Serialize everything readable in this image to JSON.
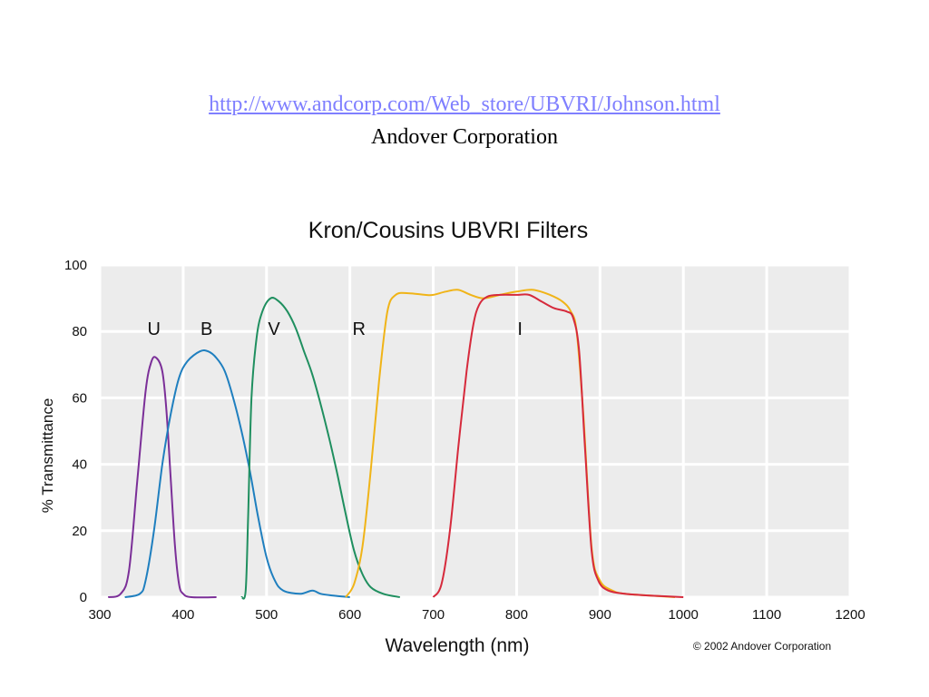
{
  "header": {
    "link_text": "http://www.andcorp.com/Web_store/UBVRI/Johnson.html",
    "subtitle": "Andover Corporation"
  },
  "chart_data": {
    "type": "line",
    "title": "Kron/Cousins UBVRI Filters",
    "xlabel": "Wavelength (nm)",
    "ylabel": "% Transmittance",
    "xlim": [
      300,
      1200
    ],
    "ylim": [
      0,
      100
    ],
    "xticks": [
      300,
      400,
      500,
      600,
      700,
      800,
      900,
      1000,
      1100,
      1200
    ],
    "yticks": [
      0,
      20,
      40,
      60,
      80,
      100
    ],
    "grid": true,
    "copyright": "© 2002 Andover Corporation",
    "series": [
      {
        "name": "U",
        "color": "#7b2f98",
        "points": [
          [
            310,
            0
          ],
          [
            325,
            1
          ],
          [
            335,
            8
          ],
          [
            345,
            35
          ],
          [
            355,
            62
          ],
          [
            362,
            71
          ],
          [
            368,
            72
          ],
          [
            375,
            68
          ],
          [
            380,
            56
          ],
          [
            385,
            36
          ],
          [
            390,
            16
          ],
          [
            395,
            4
          ],
          [
            400,
            1
          ],
          [
            410,
            0
          ],
          [
            440,
            0
          ]
        ]
      },
      {
        "name": "B",
        "color": "#1f7fbf",
        "points": [
          [
            330,
            0
          ],
          [
            348,
            1
          ],
          [
            355,
            5
          ],
          [
            365,
            20
          ],
          [
            375,
            40
          ],
          [
            385,
            55
          ],
          [
            395,
            66
          ],
          [
            405,
            71
          ],
          [
            420,
            74
          ],
          [
            430,
            74
          ],
          [
            440,
            72
          ],
          [
            450,
            68
          ],
          [
            460,
            60
          ],
          [
            470,
            50
          ],
          [
            480,
            38
          ],
          [
            490,
            24
          ],
          [
            500,
            12
          ],
          [
            510,
            5
          ],
          [
            520,
            2
          ],
          [
            540,
            1
          ],
          [
            555,
            2
          ],
          [
            565,
            1
          ],
          [
            580,
            0.5
          ],
          [
            600,
            0
          ]
        ]
      },
      {
        "name": "V",
        "color": "#1f8f5f",
        "points": [
          [
            470,
            0
          ],
          [
            475,
            2
          ],
          [
            478,
            25
          ],
          [
            482,
            60
          ],
          [
            488,
            78
          ],
          [
            495,
            86
          ],
          [
            505,
            90
          ],
          [
            515,
            89
          ],
          [
            525,
            86
          ],
          [
            535,
            81
          ],
          [
            545,
            74
          ],
          [
            555,
            67
          ],
          [
            565,
            58
          ],
          [
            575,
            48
          ],
          [
            585,
            37
          ],
          [
            595,
            25
          ],
          [
            605,
            14
          ],
          [
            615,
            7
          ],
          [
            625,
            3
          ],
          [
            640,
            1
          ],
          [
            660,
            0
          ]
        ]
      },
      {
        "name": "R",
        "color": "#f0b418",
        "points": [
          [
            595,
            0
          ],
          [
            605,
            4
          ],
          [
            615,
            15
          ],
          [
            625,
            38
          ],
          [
            635,
            65
          ],
          [
            645,
            86
          ],
          [
            655,
            91
          ],
          [
            670,
            91.5
          ],
          [
            690,
            91
          ],
          [
            700,
            91
          ],
          [
            715,
            92
          ],
          [
            730,
            92.5
          ],
          [
            745,
            91
          ],
          [
            760,
            90
          ],
          [
            780,
            91
          ],
          [
            800,
            92
          ],
          [
            820,
            92.5
          ],
          [
            840,
            91
          ],
          [
            855,
            89
          ],
          [
            865,
            86
          ],
          [
            872,
            80
          ],
          [
            880,
            55
          ],
          [
            890,
            15
          ],
          [
            900,
            5
          ],
          [
            915,
            2
          ],
          [
            930,
            1
          ],
          [
            960,
            0.5
          ],
          [
            990,
            0
          ]
        ]
      },
      {
        "name": "I",
        "color": "#d62a3c",
        "points": [
          [
            700,
            0
          ],
          [
            710,
            4
          ],
          [
            720,
            20
          ],
          [
            730,
            45
          ],
          [
            740,
            68
          ],
          [
            748,
            82
          ],
          [
            755,
            88
          ],
          [
            765,
            90.5
          ],
          [
            780,
            91
          ],
          [
            800,
            91
          ],
          [
            815,
            91
          ],
          [
            830,
            89
          ],
          [
            845,
            87
          ],
          [
            860,
            86
          ],
          [
            868,
            84
          ],
          [
            875,
            74
          ],
          [
            882,
            45
          ],
          [
            890,
            14
          ],
          [
            898,
            5
          ],
          [
            910,
            2
          ],
          [
            930,
            1
          ],
          [
            960,
            0.5
          ],
          [
            1000,
            0
          ]
        ]
      }
    ],
    "labels": [
      {
        "text": "U",
        "x": 365,
        "y": 79
      },
      {
        "text": "B",
        "x": 428,
        "y": 79
      },
      {
        "text": "V",
        "x": 509,
        "y": 79
      },
      {
        "text": "R",
        "x": 611,
        "y": 79
      },
      {
        "text": "I",
        "x": 804,
        "y": 79
      }
    ]
  }
}
